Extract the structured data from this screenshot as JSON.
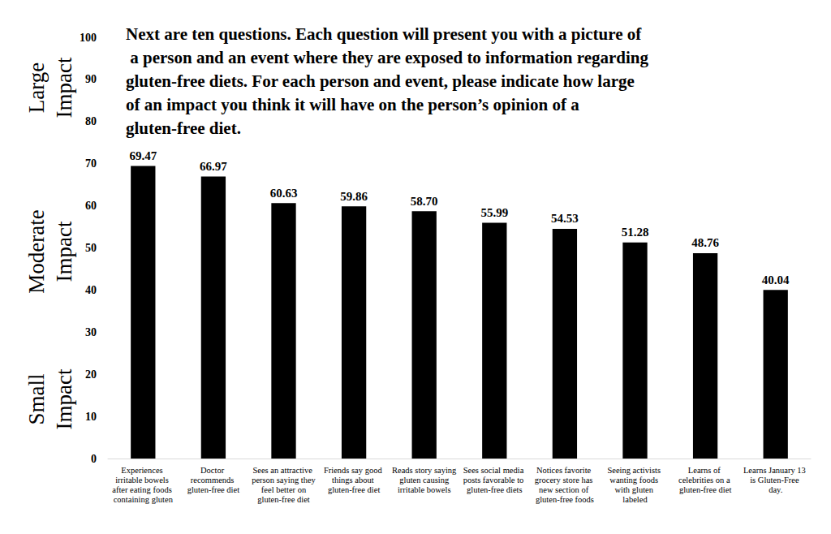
{
  "chart_data": {
    "type": "bar",
    "title": "Next are ten questions. Each question will present you with a picture of a person and an event where they are exposed to information regarding gluten-free diets. For each person and event, please indicate how large of an impact you think it will have on the person’s opinion of a gluten-free diet.",
    "categories": [
      "Experiences irritable bowels after eating foods containing gluten",
      "Doctor recommends gluten-free diet",
      "Sees an attractive person saying they feel better on gluten-free diet",
      "Friends say good things about gluten-free diet",
      "Reads story saying gluten causing irritable bowels",
      "Sees social media posts favorable to gluten-free diets",
      "Notices favorite grocery store has new section of gluten-free foods",
      "Seeing activists wanting foods with gluten labeled",
      "Learns of celebrities on a gluten-free diet",
      "Learns January 13 is Gluten-Free day."
    ],
    "values": [
      69.47,
      66.97,
      60.63,
      59.86,
      58.7,
      55.99,
      54.53,
      51.28,
      48.76,
      40.04
    ],
    "value_labels": [
      "69.47",
      "66.97",
      "60.63",
      "59.86",
      "58.70",
      "55.99",
      "54.53",
      "51.28",
      "48.76",
      "40.04"
    ],
    "color": "#000000",
    "ylim": [
      0,
      100
    ],
    "yticks": [
      0,
      10,
      20,
      30,
      40,
      50,
      60,
      70,
      80,
      90,
      100
    ],
    "grid": false,
    "data_labels": true,
    "annotations": [
      "Large Impact",
      "Moderate Impact",
      "Small Impact"
    ]
  }
}
